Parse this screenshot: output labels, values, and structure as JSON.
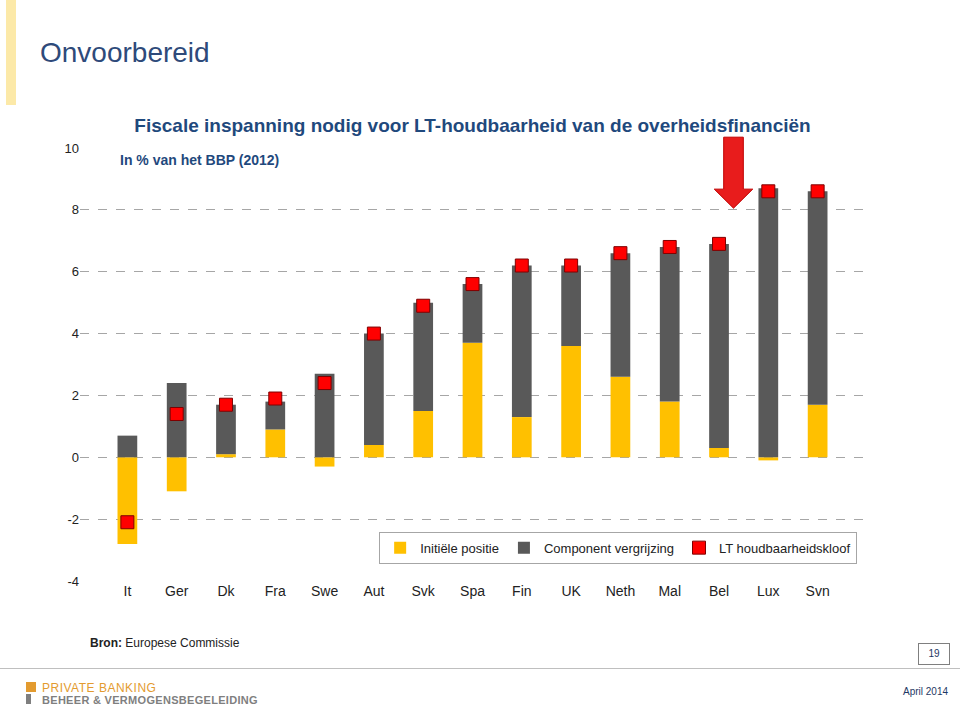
{
  "slide": {
    "title": "Onvoorbereid",
    "source_label": "Bron:",
    "source": "Europese Commissie",
    "page": 19,
    "brand": "PRIVATE BANKING",
    "brand_sub": "BEHEER & VERMOGENSBEGELEIDING",
    "date": "April 2014"
  },
  "chart_data": {
    "type": "bar",
    "title": "Fiscale inspanning nodig voor LT-houdbaarheid van de overheidsfinanciën",
    "subtitle": "In % van het BBP (2012)",
    "categories": [
      "It",
      "Ger",
      "Dk",
      "Fra",
      "Swe",
      "Aut",
      "Svk",
      "Spa",
      "Fin",
      "UK",
      "Neth",
      "Mal",
      "Bel",
      "Lux",
      "Svn"
    ],
    "series": [
      {
        "name": "Initiële positie",
        "type": "bar",
        "color": "#FFC000",
        "values": [
          -2.8,
          -1.1,
          0.1,
          0.9,
          -0.3,
          0.4,
          1.5,
          3.7,
          1.3,
          3.6,
          2.6,
          1.8,
          0.3,
          -0.1,
          1.7
        ]
      },
      {
        "name": "Component vergrijzing",
        "type": "bar",
        "color": "#595959",
        "values": [
          0.7,
          2.4,
          1.6,
          0.9,
          2.7,
          3.6,
          3.5,
          1.9,
          4.9,
          2.6,
          4.0,
          5.0,
          6.6,
          8.7,
          6.9
        ]
      },
      {
        "name": "LT houdbaarheidskloof",
        "type": "scatter",
        "marker": "square",
        "color": "#FF0000",
        "values": [
          -2.1,
          1.4,
          1.7,
          1.9,
          2.4,
          4.0,
          4.9,
          5.6,
          6.2,
          6.2,
          6.6,
          6.8,
          6.9,
          8.6,
          8.6
        ]
      }
    ],
    "stacked": true,
    "ylim": [
      -4,
      10
    ],
    "yticks": [
      -4,
      -2,
      0,
      2,
      4,
      6,
      8,
      10
    ],
    "grid": true,
    "legend": "bottom right"
  }
}
